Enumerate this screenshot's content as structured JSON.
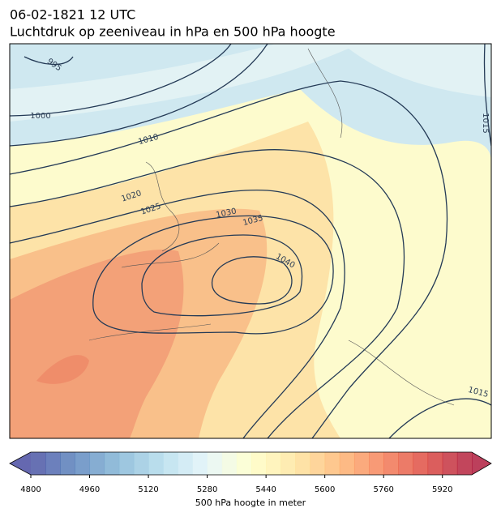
{
  "header": {
    "title": "06-02-1821 12 UTC",
    "subtitle": "Luchtdruk op zeeniveau in hPa en 500 hPa hoogte"
  },
  "map": {
    "contour_labels": [
      "995",
      "1000",
      "1010",
      "1015",
      "1020",
      "1025",
      "1030",
      "1035",
      "1040",
      "1015"
    ]
  },
  "colorbar": {
    "label": "500 hPa hoogte in meter",
    "lim": [
      4800,
      6000
    ],
    "ticks": [
      4800,
      4960,
      5120,
      5280,
      5440,
      5600,
      5760,
      5920
    ]
  }
}
